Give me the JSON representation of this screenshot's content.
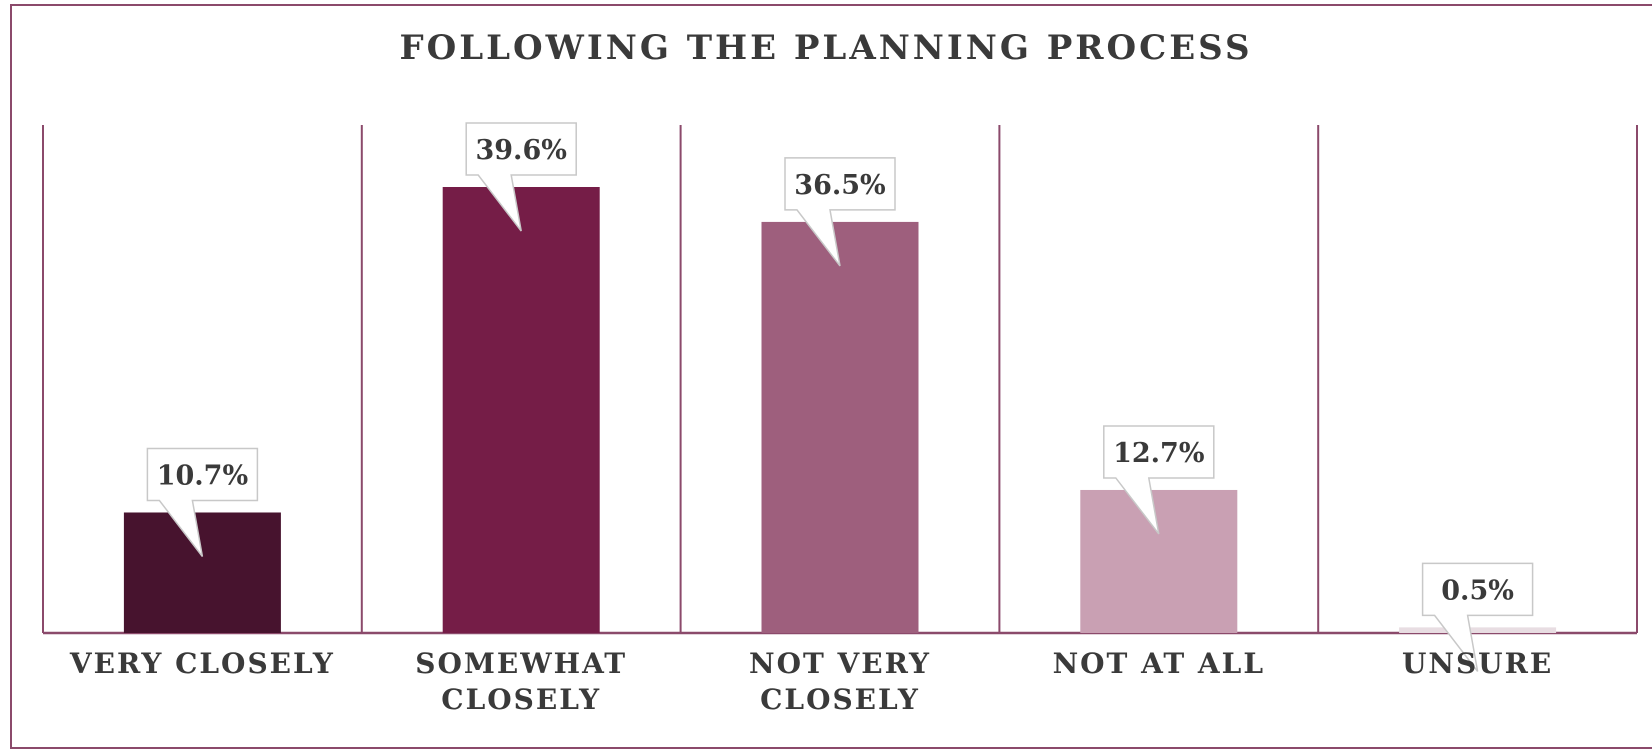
{
  "chart_data": {
    "type": "bar",
    "title": "FOLLOWING THE PLANNING PROCESS",
    "categories": [
      "VERY CLOSELY",
      "SOMEWHAT CLOSELY",
      "NOT VERY CLOSELY",
      "NOT AT ALL",
      "UNSURE"
    ],
    "values": [
      10.7,
      39.6,
      36.5,
      12.7,
      0.5
    ],
    "value_labels": [
      "10.7%",
      "39.6%",
      "36.5%",
      "12.7%",
      "0.5%"
    ],
    "colors": [
      "#47132e",
      "#751d47",
      "#9e5f7d",
      "#c9a0b3",
      "#e8dde2"
    ],
    "ylim": [
      0,
      50
    ],
    "xlabel": "",
    "ylabel": "",
    "grid": false,
    "legend": "none"
  }
}
